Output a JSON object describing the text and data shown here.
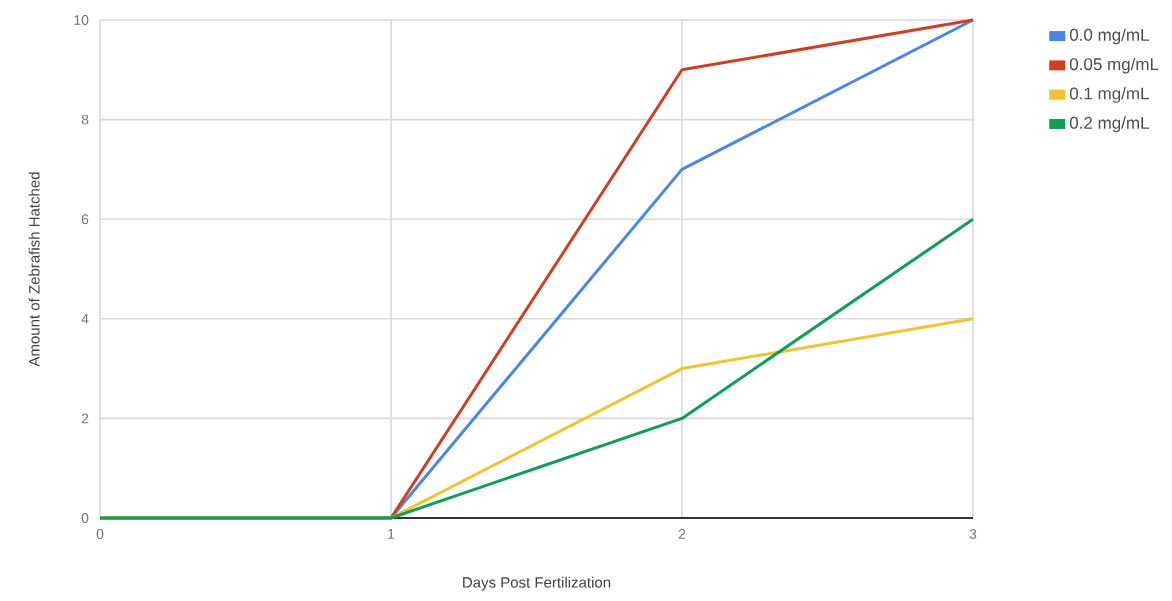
{
  "chart_data": {
    "type": "line",
    "xlabel": "Days Post Fertilization",
    "ylabel": "Amount of Zebrafish Hatched",
    "x": [
      0,
      1,
      2,
      3
    ],
    "series": [
      {
        "name": "0.0 mg/mL",
        "color": "#4a86e8",
        "values": [
          0,
          0,
          7,
          10
        ]
      },
      {
        "name": "0.05 mg/mL",
        "color": "#cc4125",
        "values": [
          0,
          0,
          9,
          10
        ]
      },
      {
        "name": "0.1 mg/mL",
        "color": "#f1c232",
        "values": [
          0,
          0,
          3,
          4
        ]
      },
      {
        "name": "0.2 mg/mL",
        "color": "#0f9d58",
        "values": [
          0,
          0,
          2,
          6
        ]
      }
    ],
    "xlim": [
      0,
      3
    ],
    "xticks": [
      0,
      1,
      2,
      3
    ],
    "ylim": [
      0,
      10
    ],
    "yticks": [
      0,
      2,
      4,
      6,
      8,
      10
    ],
    "grid": true,
    "legend": "top right",
    "marker": "none",
    "line_style": "solid"
  }
}
